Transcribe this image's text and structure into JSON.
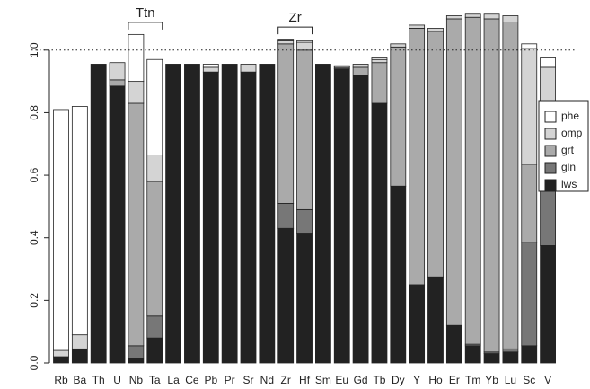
{
  "chart_data": {
    "type": "stacked-bar",
    "categories": [
      "Rb",
      "Ba",
      "Th",
      "U",
      "Nb",
      "Ta",
      "La",
      "Ce",
      "Pb",
      "Pr",
      "Sr",
      "Nd",
      "Zr",
      "Hf",
      "Sm",
      "Eu",
      "Gd",
      "Tb",
      "Dy",
      "Y",
      "Ho",
      "Er",
      "Tm",
      "Yb",
      "Lu",
      "Sc",
      "V"
    ],
    "series": [
      {
        "name": "lws",
        "color": "#222222",
        "values": [
          0.02,
          0.045,
          0.955,
          0.885,
          0.015,
          0.08,
          0.955,
          0.955,
          0.93,
          0.955,
          0.93,
          0.955,
          0.43,
          0.415,
          0.955,
          0.94,
          0.92,
          0.83,
          0.565,
          0.25,
          0.275,
          0.12,
          0.055,
          0.03,
          0.035,
          0.055,
          0.375
        ]
      },
      {
        "name": "gln",
        "color": "#777777",
        "values": [
          0,
          0,
          0,
          0,
          0.04,
          0.07,
          0,
          0,
          0,
          0,
          0,
          0,
          0.08,
          0.075,
          0,
          0.005,
          0,
          0,
          0,
          0,
          0,
          0,
          0.005,
          0.005,
          0.01,
          0.33,
          0.24
        ]
      },
      {
        "name": "grt",
        "color": "#aaaaaa",
        "values": [
          0,
          0,
          0,
          0.02,
          0.775,
          0.43,
          0,
          0,
          0,
          0,
          0,
          0,
          0.51,
          0.51,
          0,
          0,
          0.025,
          0.13,
          0.445,
          0.82,
          0.785,
          0.98,
          1.045,
          1.065,
          1.045,
          0.25,
          0.02
        ]
      },
      {
        "name": "omp",
        "color": "#d4d4d4",
        "values": [
          0.02,
          0.045,
          0,
          0.055,
          0.07,
          0.085,
          0,
          0,
          0.015,
          0,
          0.025,
          0,
          0.01,
          0.025,
          0,
          0.005,
          0.01,
          0.01,
          0.01,
          0.01,
          0.01,
          0.01,
          0.01,
          0.015,
          0.02,
          0.37,
          0.31
        ]
      },
      {
        "name": "phe",
        "color": "#ffffff",
        "values": [
          0.77,
          0.73,
          0,
          0,
          0.15,
          0.305,
          0,
          0,
          0.01,
          0,
          0,
          0,
          0.005,
          0.005,
          0,
          0,
          0,
          0.005,
          0,
          0,
          0,
          0,
          0,
          0,
          0,
          0.015,
          0.03
        ]
      }
    ],
    "ylim": [
      0,
      1.12
    ],
    "yticks": [
      {
        "value": 0,
        "label": "0.0"
      },
      {
        "value": 0.2,
        "label": "0.2"
      },
      {
        "value": 0.4,
        "label": "0.4"
      },
      {
        "value": 0.6,
        "label": "0.6"
      },
      {
        "value": 0.8,
        "label": "0.8"
      },
      {
        "value": 1,
        "label": "1.0"
      }
    ],
    "reference_line": 1,
    "annotations": [
      {
        "text": "Ttn"
      },
      {
        "text": "Zr"
      }
    ],
    "legend": "right"
  }
}
